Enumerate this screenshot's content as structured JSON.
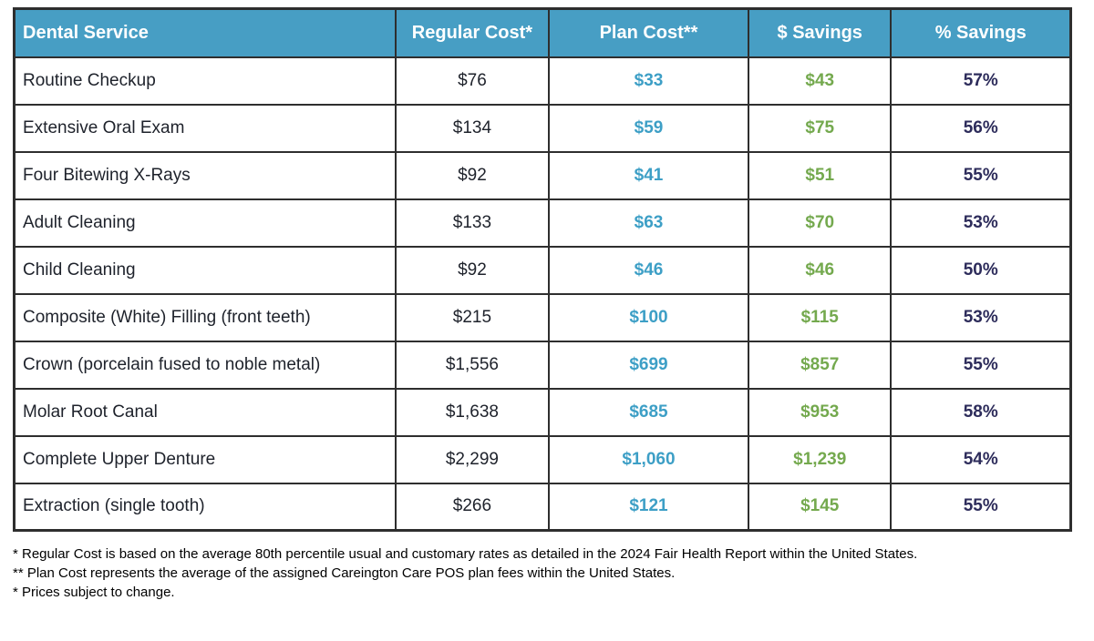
{
  "colors": {
    "header_bg": "#479EC4",
    "header_text": "#FFFFFF",
    "body_text": "#1E222B",
    "plan_cost": "#3D9FC6",
    "dollar_savings": "#74A94E",
    "percent_savings": "#2D2C5B",
    "border": "#2E2E2E",
    "footnote_text": "#000000"
  },
  "chart_data": {
    "type": "table",
    "columns": [
      "Dental Service",
      "Regular Cost*",
      "Plan Cost**",
      "$ Savings",
      "% Savings"
    ],
    "rows": [
      {
        "service": "Routine Checkup",
        "regular_cost": "$76",
        "plan_cost": "$33",
        "dollar_savings": "$43",
        "percent_savings": "57%"
      },
      {
        "service": "Extensive Oral Exam",
        "regular_cost": "$134",
        "plan_cost": "$59",
        "dollar_savings": "$75",
        "percent_savings": "56%"
      },
      {
        "service": "Four Bitewing X-Rays",
        "regular_cost": "$92",
        "plan_cost": "$41",
        "dollar_savings": "$51",
        "percent_savings": "55%"
      },
      {
        "service": "Adult Cleaning",
        "regular_cost": "$133",
        "plan_cost": "$63",
        "dollar_savings": "$70",
        "percent_savings": "53%"
      },
      {
        "service": "Child Cleaning",
        "regular_cost": "$92",
        "plan_cost": "$46",
        "dollar_savings": "$46",
        "percent_savings": "50%"
      },
      {
        "service": "Composite (White) Filling (front teeth)",
        "regular_cost": "$215",
        "plan_cost": "$100",
        "dollar_savings": "$115",
        "percent_savings": "53%"
      },
      {
        "service": "Crown (porcelain fused to noble metal)",
        "regular_cost": "$1,556",
        "plan_cost": "$699",
        "dollar_savings": "$857",
        "percent_savings": "55%"
      },
      {
        "service": "Molar Root Canal",
        "regular_cost": "$1,638",
        "plan_cost": "$685",
        "dollar_savings": "$953",
        "percent_savings": "58%"
      },
      {
        "service": "Complete Upper Denture",
        "regular_cost": "$2,299",
        "plan_cost": "$1,060",
        "dollar_savings": "$1,239",
        "percent_savings": "54%"
      },
      {
        "service": "Extraction (single tooth)",
        "regular_cost": "$266",
        "plan_cost": "$121",
        "dollar_savings": "$145",
        "percent_savings": "55%"
      }
    ]
  },
  "footnotes": [
    "* Regular Cost is based on the average 80th percentile usual and customary rates as detailed in the 2024 Fair Health Report within the United States.",
    "** Plan Cost represents the average of the assigned Careington Care POS plan fees within the United States.",
    "* Prices subject to change."
  ]
}
